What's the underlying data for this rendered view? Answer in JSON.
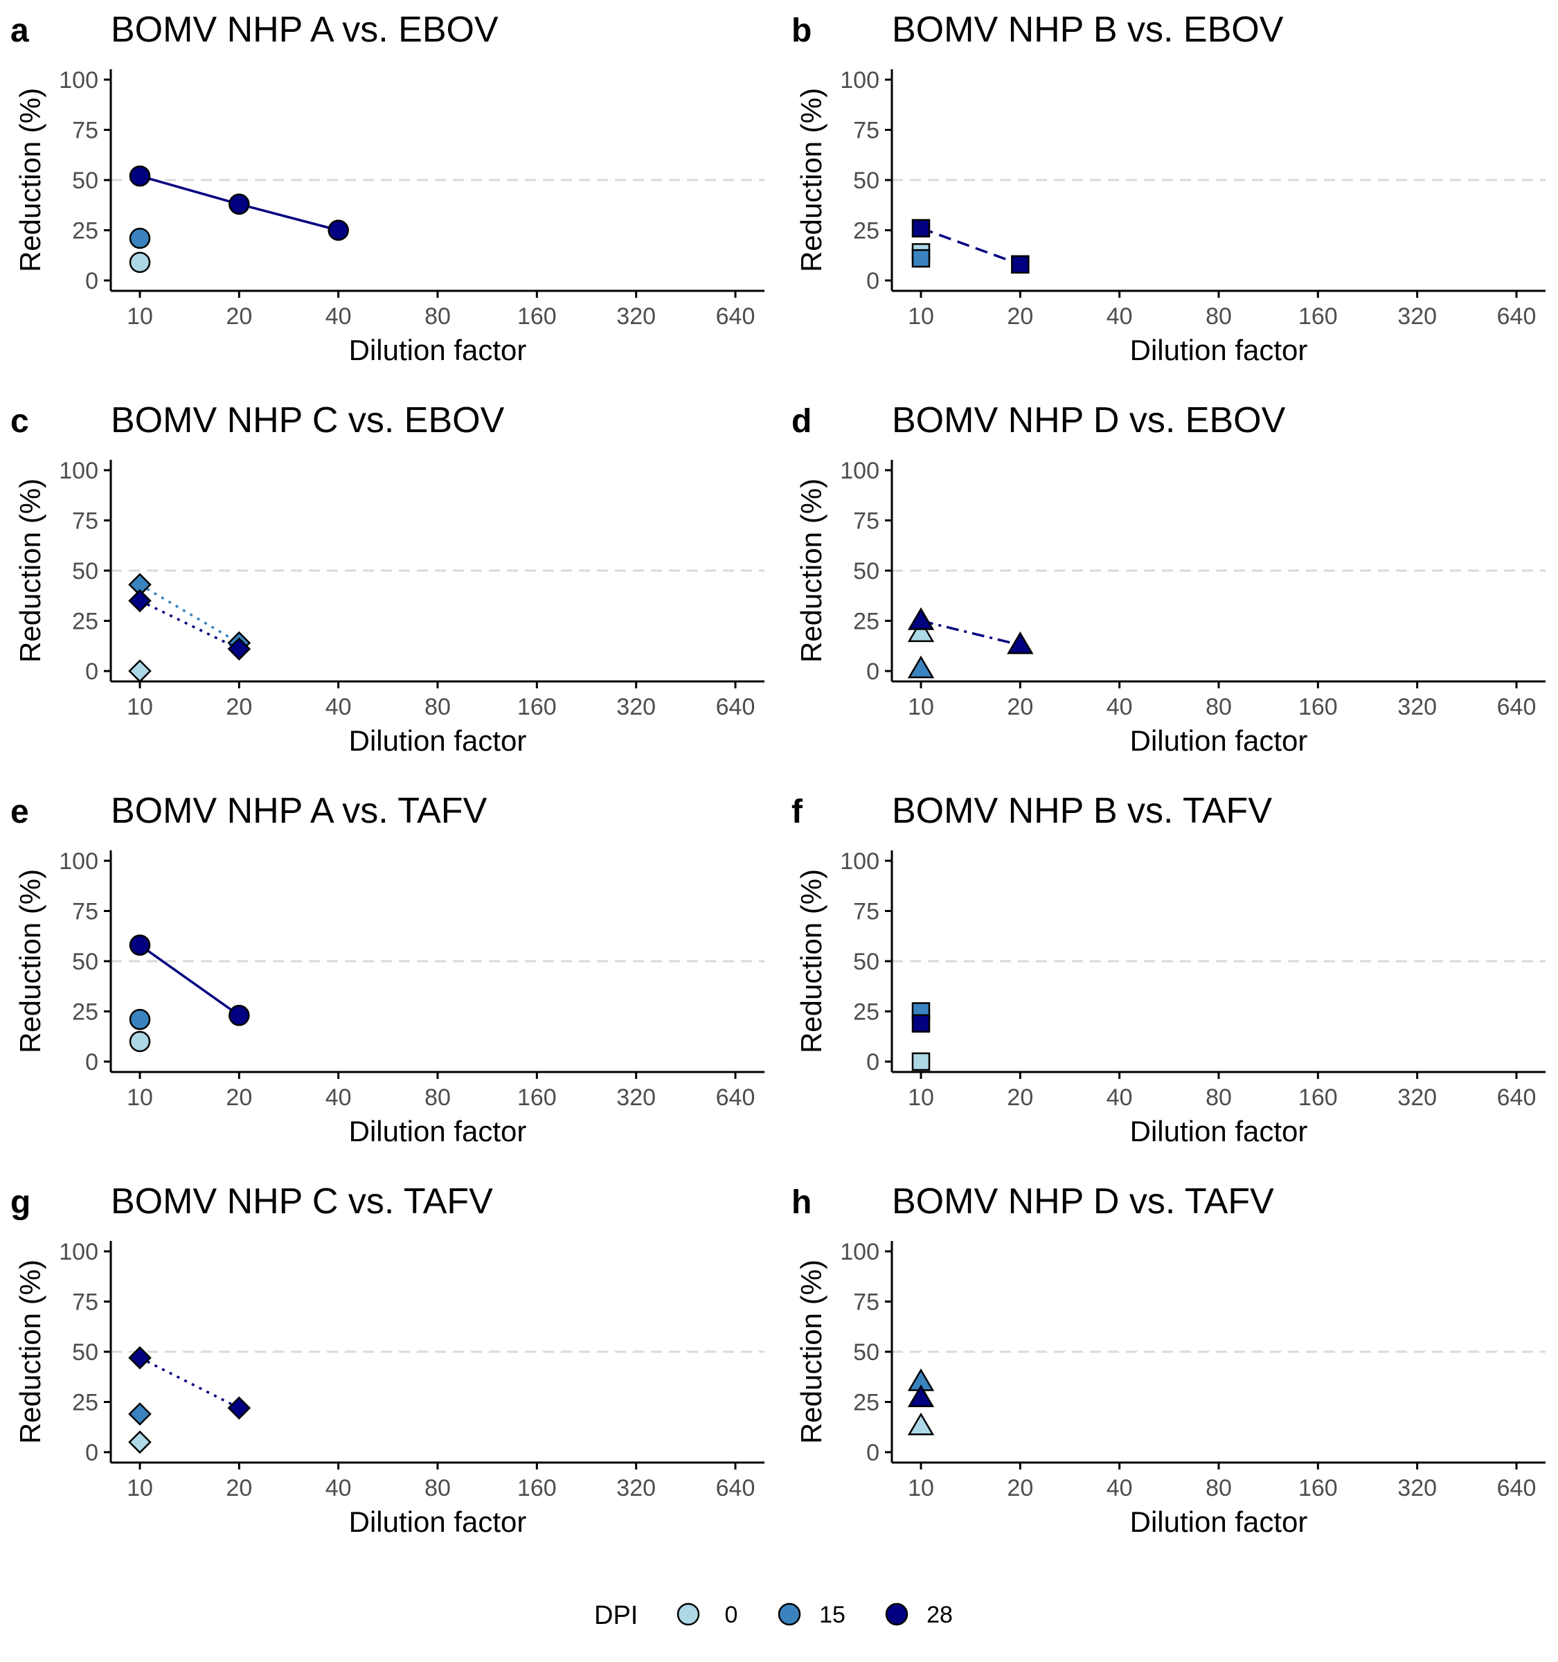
{
  "figure": {
    "x_ticks": [
      10,
      20,
      40,
      80,
      160,
      320,
      640
    ],
    "y_ticks": [
      0,
      25,
      50,
      75,
      100
    ],
    "xlabel": "Dilution factor",
    "ylabel": "Reduction (%)",
    "reference_line": 50
  },
  "colors": {
    "0": "#add8e6",
    "15": "#3a83bf",
    "28": "#000080",
    "axis": "#000000",
    "tick_text": "#4d4d4d",
    "reference": "#d9d9d9"
  },
  "legend": {
    "title": "DPI",
    "entries": [
      {
        "label": "0",
        "dpi": "0"
      },
      {
        "label": "15",
        "dpi": "15"
      },
      {
        "label": "28",
        "dpi": "28"
      }
    ]
  },
  "chart_data": [
    {
      "panel": "a",
      "title": "BOMV NHP A vs. EBOV",
      "type": "line",
      "marker": "circle",
      "line_style": "solid",
      "x_scale": "log2",
      "ylim": [
        0,
        100
      ],
      "xlabel": "Dilution factor",
      "ylabel": "Reduction (%)",
      "series": [
        {
          "dpi": "0",
          "x": [
            10
          ],
          "y": [
            9
          ]
        },
        {
          "dpi": "15",
          "x": [
            10
          ],
          "y": [
            21
          ]
        },
        {
          "dpi": "28",
          "x": [
            10,
            20,
            40
          ],
          "y": [
            52,
            38,
            25
          ]
        }
      ]
    },
    {
      "panel": "b",
      "title": "BOMV NHP B vs. EBOV",
      "type": "line",
      "marker": "square",
      "line_style": "dashed",
      "x_scale": "log2",
      "ylim": [
        0,
        100
      ],
      "xlabel": "Dilution factor",
      "ylabel": "Reduction (%)",
      "series": [
        {
          "dpi": "0",
          "x": [
            10
          ],
          "y": [
            14
          ]
        },
        {
          "dpi": "15",
          "x": [
            10
          ],
          "y": [
            11
          ]
        },
        {
          "dpi": "28",
          "x": [
            10,
            20
          ],
          "y": [
            26,
            8
          ]
        }
      ]
    },
    {
      "panel": "c",
      "title": "BOMV NHP C vs. EBOV",
      "type": "line",
      "marker": "diamond",
      "line_style": "dotted",
      "x_scale": "log2",
      "ylim": [
        0,
        100
      ],
      "xlabel": "Dilution factor",
      "ylabel": "Reduction (%)",
      "series": [
        {
          "dpi": "0",
          "x": [
            10
          ],
          "y": [
            0
          ]
        },
        {
          "dpi": "15",
          "x": [
            10,
            20
          ],
          "y": [
            43,
            14
          ]
        },
        {
          "dpi": "28",
          "x": [
            10,
            20
          ],
          "y": [
            35,
            11
          ]
        }
      ]
    },
    {
      "panel": "d",
      "title": "BOMV NHP D vs. EBOV",
      "type": "line",
      "marker": "triangle",
      "line_style": "dashdot",
      "x_scale": "log2",
      "ylim": [
        0,
        100
      ],
      "xlabel": "Dilution factor",
      "ylabel": "Reduction (%)",
      "series": [
        {
          "dpi": "0",
          "x": [
            10
          ],
          "y": [
            19
          ]
        },
        {
          "dpi": "15",
          "x": [
            10
          ],
          "y": [
            1
          ]
        },
        {
          "dpi": "28",
          "x": [
            10,
            20
          ],
          "y": [
            25,
            13
          ]
        }
      ]
    },
    {
      "panel": "e",
      "title": "BOMV NHP A vs. TAFV",
      "type": "line",
      "marker": "circle",
      "line_style": "solid",
      "x_scale": "log2",
      "ylim": [
        0,
        100
      ],
      "xlabel": "Dilution factor",
      "ylabel": "Reduction (%)",
      "series": [
        {
          "dpi": "0",
          "x": [
            10
          ],
          "y": [
            10
          ]
        },
        {
          "dpi": "15",
          "x": [
            10
          ],
          "y": [
            21
          ]
        },
        {
          "dpi": "28",
          "x": [
            10,
            20
          ],
          "y": [
            58,
            23
          ]
        }
      ]
    },
    {
      "panel": "f",
      "title": "BOMV NHP B vs. TAFV",
      "type": "line",
      "marker": "square",
      "line_style": "dashed",
      "x_scale": "log2",
      "ylim": [
        0,
        100
      ],
      "xlabel": "Dilution factor",
      "ylabel": "Reduction (%)",
      "series": [
        {
          "dpi": "0",
          "x": [
            10
          ],
          "y": [
            0
          ]
        },
        {
          "dpi": "15",
          "x": [
            10
          ],
          "y": [
            25
          ]
        },
        {
          "dpi": "28",
          "x": [
            10
          ],
          "y": [
            19
          ]
        }
      ]
    },
    {
      "panel": "g",
      "title": "BOMV NHP C vs. TAFV",
      "type": "line",
      "marker": "diamond",
      "line_style": "dotted",
      "x_scale": "log2",
      "ylim": [
        0,
        100
      ],
      "xlabel": "Dilution factor",
      "ylabel": "Reduction (%)",
      "series": [
        {
          "dpi": "0",
          "x": [
            10
          ],
          "y": [
            5
          ]
        },
        {
          "dpi": "15",
          "x": [
            10
          ],
          "y": [
            19
          ]
        },
        {
          "dpi": "28",
          "x": [
            10,
            20
          ],
          "y": [
            47,
            22
          ]
        }
      ]
    },
    {
      "panel": "h",
      "title": "BOMV NHP D vs. TAFV",
      "type": "line",
      "marker": "triangle",
      "line_style": "dashdot",
      "x_scale": "log2",
      "ylim": [
        0,
        100
      ],
      "xlabel": "Dilution factor",
      "ylabel": "Reduction (%)",
      "series": [
        {
          "dpi": "0",
          "x": [
            10
          ],
          "y": [
            13
          ]
        },
        {
          "dpi": "15",
          "x": [
            10
          ],
          "y": [
            35
          ]
        },
        {
          "dpi": "28",
          "x": [
            10
          ],
          "y": [
            27
          ]
        }
      ]
    }
  ]
}
